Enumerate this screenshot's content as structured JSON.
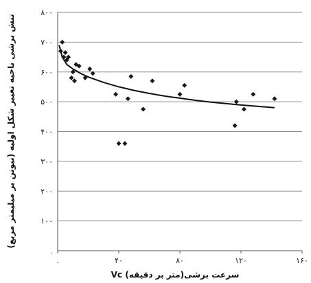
{
  "chart_data": {
    "type": "scatter",
    "xlabel": "Vc سرعت برشی(متر بر دقیقه)",
    "ylabel": "تنش برشی ناحیه تغییر شکل اولیه (نیوتن بر میلیمتر مربع)",
    "xlim": [
      0,
      160
    ],
    "ylim": [
      0,
      800
    ],
    "x_ticks": [
      0,
      40,
      80,
      120,
      160
    ],
    "y_ticks": [
      0,
      100,
      200,
      300,
      400,
      500,
      600,
      700,
      800
    ],
    "x_tick_labels": [
      ".",
      "۴۰",
      "۸۰",
      "۱۲۰",
      "۱۶۰"
    ],
    "y_tick_labels": [
      ".",
      "۱۰۰",
      "۲۰۰",
      "۳۰۰",
      "۴۰۰",
      "۵۰۰",
      "۶۰۰",
      "۷۰۰",
      "۸۰۰"
    ],
    "grid": "horizontal",
    "series": [
      {
        "marker": "diamond",
        "x": [
          2,
          3,
          4,
          5,
          6,
          7,
          9,
          10,
          11,
          12,
          14,
          18,
          21,
          23,
          38,
          40,
          44,
          46,
          48,
          56,
          62,
          80,
          83,
          116,
          117,
          122,
          128,
          142
        ],
        "y": [
          670,
          700,
          650,
          665,
          640,
          650,
          580,
          600,
          570,
          625,
          620,
          580,
          610,
          595,
          525,
          360,
          360,
          510,
          585,
          475,
          570,
          525,
          555,
          420,
          500,
          475,
          525,
          510
        ]
      }
    ],
    "trendline": {
      "x": [
        1,
        3,
        6,
        10,
        15,
        20,
        30,
        40,
        50,
        60,
        70,
        80,
        90,
        100,
        110,
        120,
        130,
        142
      ],
      "y": [
        690,
        650,
        625,
        610,
        595,
        583,
        565,
        550,
        538,
        528,
        519,
        512,
        505,
        499,
        494,
        489,
        485,
        480
      ]
    },
    "colors": {
      "marker": "#1a1a1a",
      "trendline": "#111111",
      "grid": "#8f8f8f"
    }
  }
}
